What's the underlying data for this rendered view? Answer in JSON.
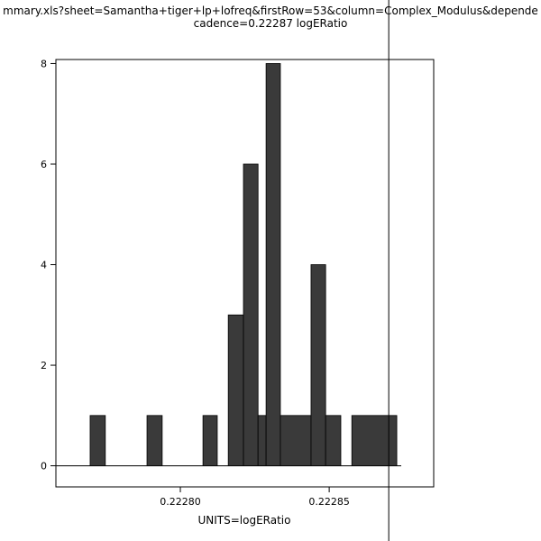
{
  "header": {
    "title_line1": "mmary.xls?sheet=Samantha+tiger+lp+lofreq&firstRow=53&column=Complex_Modulus&depende",
    "title_line2": "cadence=0.22287 logERatio"
  },
  "chart_data": {
    "type": "bar",
    "subtype": "histogram",
    "title_lines": [
      "mmary.xls?sheet=Samantha+tiger+lp+lofreq&firstRow=53&column=Complex_Modulus&depende",
      "cadence=0.22287 logERatio"
    ],
    "xlabel": "UNITS=logERatio",
    "ylabel": "",
    "xlim": [
      0.2227582,
      0.2228851
    ],
    "ylim": [
      -0.42,
      8.08
    ],
    "grid": false,
    "legend": null,
    "xticks": [
      {
        "v": 0.2228,
        "label": "0.22280"
      },
      {
        "v": 0.22285,
        "label": "0.22285"
      }
    ],
    "yticks": [
      {
        "v": 0,
        "label": "0"
      },
      {
        "v": 2,
        "label": "2"
      },
      {
        "v": 4,
        "label": "4"
      },
      {
        "v": 6,
        "label": "6"
      },
      {
        "v": 8,
        "label": "8"
      }
    ],
    "bars": [
      {
        "x0": 0.2227697,
        "x1": 0.2227748,
        "count": 1
      },
      {
        "x0": 0.2227888,
        "x1": 0.2227939,
        "count": 1
      },
      {
        "x0": 0.2228076,
        "x1": 0.2228124,
        "count": 1
      },
      {
        "x0": 0.2228161,
        "x1": 0.2228212,
        "count": 3
      },
      {
        "x0": 0.2228212,
        "x1": 0.2228261,
        "count": 6
      },
      {
        "x0": 0.2228261,
        "x1": 0.2228288,
        "count": 1
      },
      {
        "x0": 0.2228288,
        "x1": 0.2228336,
        "count": 8
      },
      {
        "x0": 0.2228336,
        "x1": 0.2228439,
        "count": 1
      },
      {
        "x0": 0.2228439,
        "x1": 0.2228488,
        "count": 4
      },
      {
        "x0": 0.2228488,
        "x1": 0.2228539,
        "count": 1
      },
      {
        "x0": 0.2228576,
        "x1": 0.2228727,
        "count": 1
      }
    ],
    "baseline": {
      "x0": 0.2227582,
      "x1": 0.2228742,
      "y": 0
    },
    "vline_x": 0.22287,
    "bar_color": "#3a3a3a",
    "axis_color": "#000000",
    "background_color": "#ffffff"
  }
}
